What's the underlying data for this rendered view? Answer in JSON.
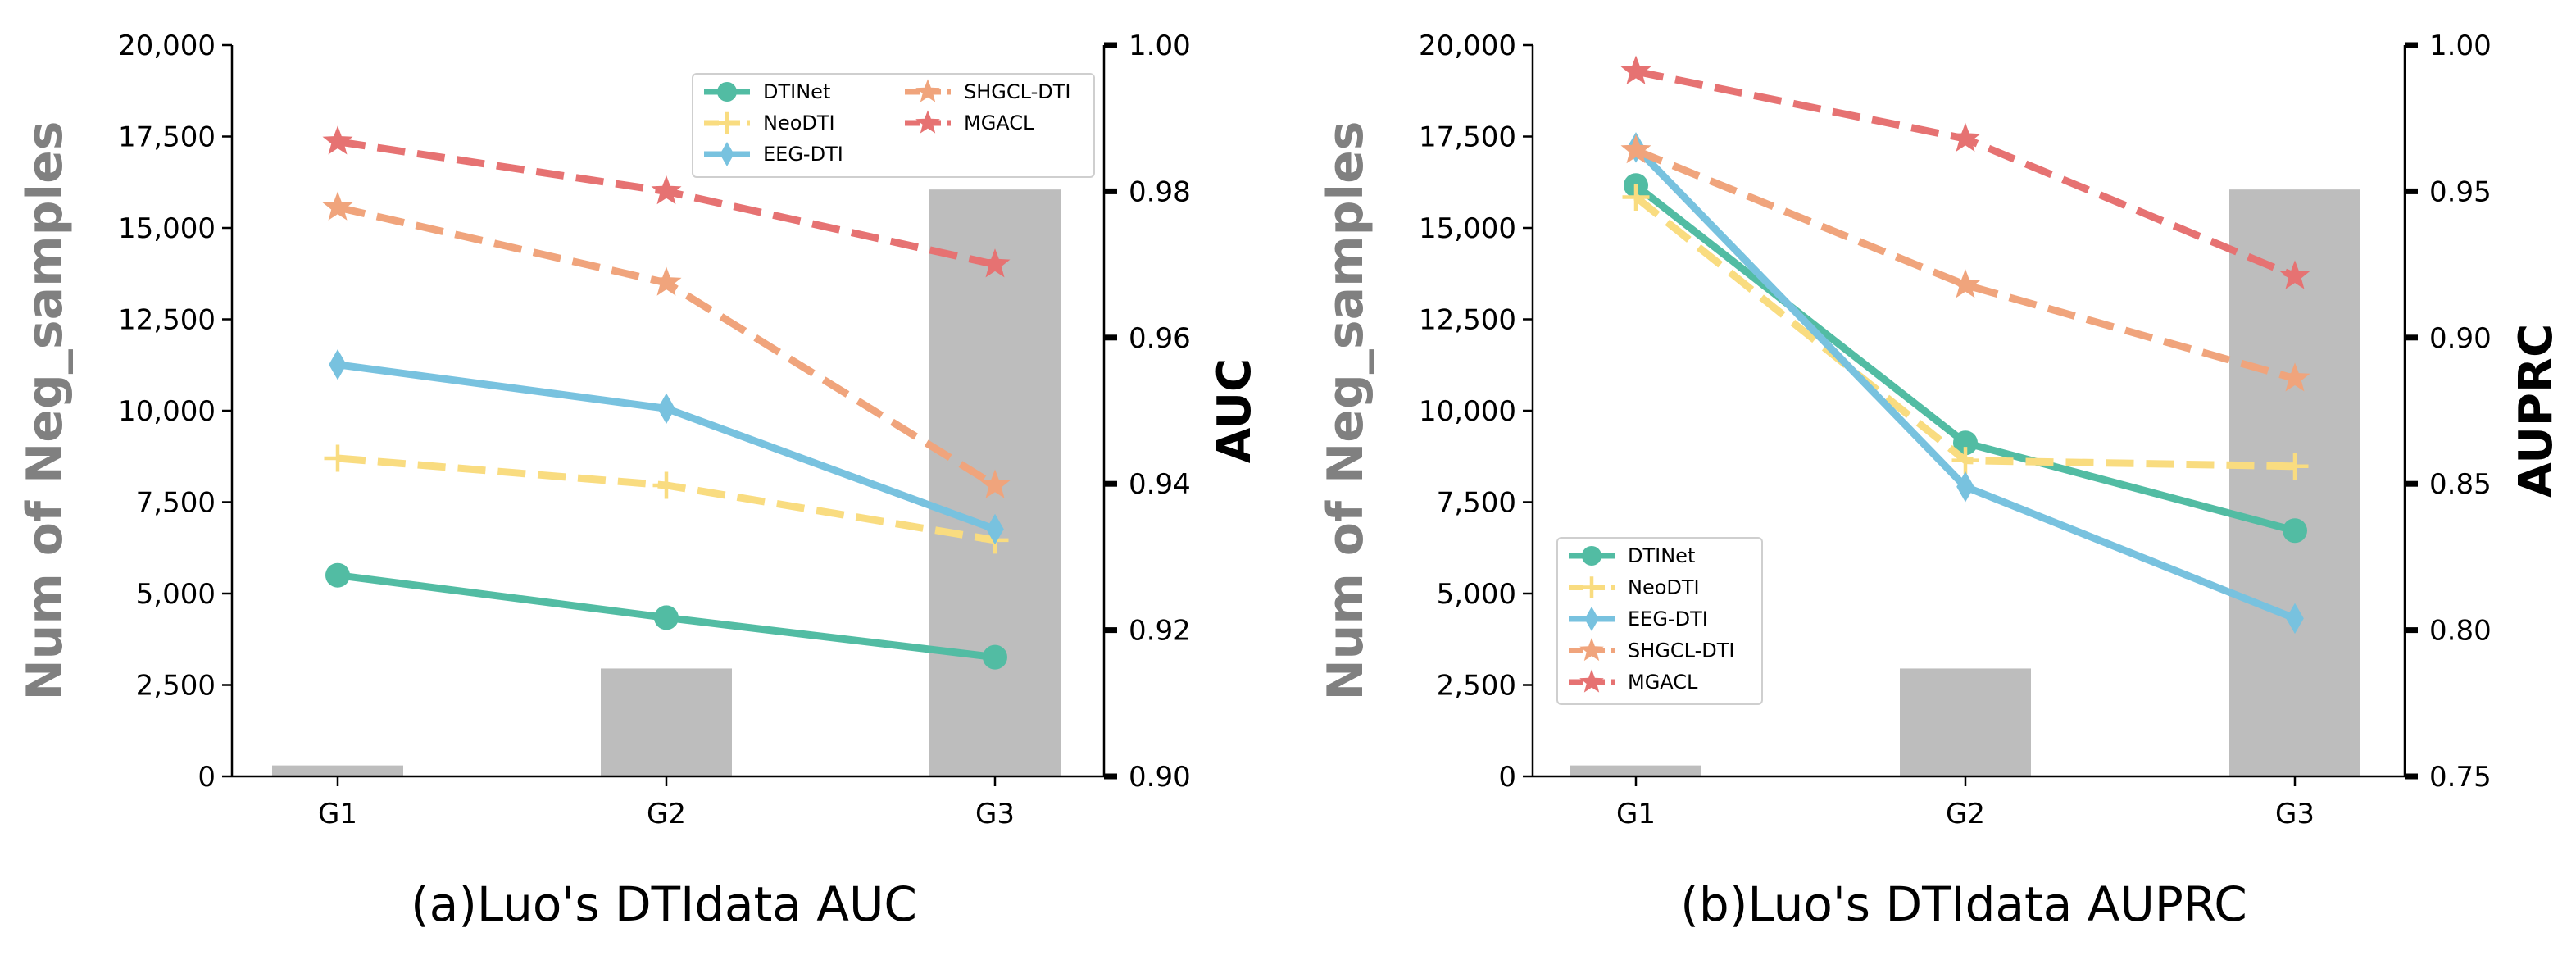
{
  "chart_data": [
    {
      "type": "bar+line",
      "caption": "(a)Luo's DTIdata AUC",
      "categories": [
        "G1",
        "G2",
        "G3"
      ],
      "bars": {
        "name": "Neg_samples",
        "values": [
          300,
          2950,
          16050
        ],
        "color": "#bdbdbd"
      },
      "left_axis": {
        "label": "Num of Neg_samples",
        "ylim": [
          0,
          20000
        ],
        "ticks": [
          0,
          2500,
          5000,
          7500,
          10000,
          12500,
          15000,
          17500,
          20000
        ],
        "tick_labels": [
          "0",
          "2,500",
          "5,000",
          "7,500",
          "10,000",
          "12,500",
          "15,000",
          "17,500",
          "20,000"
        ]
      },
      "right_axis": {
        "label": "AUC",
        "ylim": [
          0.9,
          1.0
        ],
        "ticks": [
          0.9,
          0.92,
          0.94,
          0.96,
          0.98,
          1.0
        ],
        "tick_labels": [
          "0.90",
          "0.92",
          "0.94",
          "0.96",
          "0.98",
          "1.00"
        ]
      },
      "legend_position": "top-right",
      "series": [
        {
          "name": "DTINet",
          "values": [
            0.9275,
            0.9217,
            0.9163
          ],
          "color": "#52bca3",
          "marker": "circle",
          "dash": "solid"
        },
        {
          "name": "NeoDTI",
          "values": [
            0.9435,
            0.9398,
            0.9323
          ],
          "color": "#f9dc80",
          "marker": "plus",
          "dash": "dashed"
        },
        {
          "name": "EEG-DTI",
          "values": [
            0.9563,
            0.9503,
            0.9338
          ],
          "color": "#78c2df",
          "marker": "diamond",
          "dash": "solid"
        },
        {
          "name": "SHGCL-DTI",
          "values": [
            0.9778,
            0.9675,
            0.9398
          ],
          "color": "#f0a47c",
          "marker": "star",
          "dash": "dashed"
        },
        {
          "name": "MGACL",
          "values": [
            0.9868,
            0.98,
            0.97
          ],
          "color": "#e67272",
          "marker": "star",
          "dash": "dashed"
        }
      ]
    },
    {
      "type": "bar+line",
      "caption": "(b)Luo's DTIdata AUPRC",
      "categories": [
        "G1",
        "G2",
        "G3"
      ],
      "bars": {
        "name": "Neg_samples",
        "values": [
          300,
          2950,
          16050
        ],
        "color": "#bdbdbd"
      },
      "left_axis": {
        "label": "Num of Neg_samples",
        "ylim": [
          0,
          20000
        ],
        "ticks": [
          0,
          2500,
          5000,
          7500,
          10000,
          12500,
          15000,
          17500,
          20000
        ],
        "tick_labels": [
          "0",
          "2,500",
          "5,000",
          "7,500",
          "10,000",
          "12,500",
          "15,000",
          "17,500",
          "20,000"
        ]
      },
      "right_axis": {
        "label": "AUPRC",
        "ylim": [
          0.75,
          1.0
        ],
        "ticks": [
          0.75,
          0.8,
          0.85,
          0.9,
          0.95,
          1.0
        ],
        "tick_labels": [
          "0.75",
          "0.80",
          "0.85",
          "0.90",
          "0.95",
          "1.00"
        ]
      },
      "legend_position": "bottom-left",
      "series": [
        {
          "name": "DTINet",
          "values": [
            0.952,
            0.864,
            0.834
          ],
          "color": "#52bca3",
          "marker": "circle",
          "dash": "solid"
        },
        {
          "name": "NeoDTI",
          "values": [
            0.948,
            0.858,
            0.856
          ],
          "color": "#f9dc80",
          "marker": "plus",
          "dash": "dashed"
        },
        {
          "name": "EEG-DTI",
          "values": [
            0.965,
            0.849,
            0.804
          ],
          "color": "#78c2df",
          "marker": "diamond",
          "dash": "solid"
        },
        {
          "name": "SHGCL-DTI",
          "values": [
            0.964,
            0.918,
            0.886
          ],
          "color": "#f0a47c",
          "marker": "star",
          "dash": "dashed"
        },
        {
          "name": "MGACL",
          "values": [
            0.991,
            0.968,
            0.921
          ],
          "color": "#e67272",
          "marker": "star",
          "dash": "dashed"
        }
      ]
    }
  ]
}
